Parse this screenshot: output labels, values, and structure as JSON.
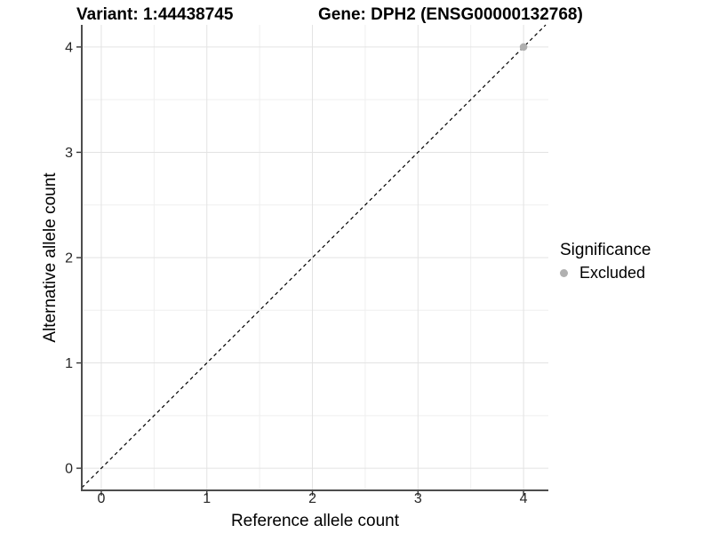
{
  "header": {
    "variant_title": "Variant: 1:44438745",
    "gene_title": "Gene: DPH2 (ENSG00000132768)"
  },
  "axes": {
    "x": {
      "label": "Reference allele count",
      "ticks": [
        "0",
        "1",
        "2",
        "3",
        "4"
      ]
    },
    "y": {
      "label": "Alternative allele count",
      "ticks": [
        "0",
        "1",
        "2",
        "3",
        "4"
      ]
    }
  },
  "legend": {
    "title": "Significance",
    "items": [
      {
        "label": "Excluded",
        "color": "#b0b0b0"
      }
    ]
  },
  "chart_data": {
    "type": "scatter",
    "title": "Variant: 1:44438745",
    "subtitle": "Gene: DPH2 (ENSG00000132768)",
    "xlabel": "Reference allele count",
    "ylabel": "Alternative allele count",
    "xlim": [
      -0.185,
      4.235
    ],
    "ylim": [
      -0.21,
      4.21
    ],
    "x_ticks": [
      0,
      1,
      2,
      3,
      4
    ],
    "y_ticks": [
      0,
      1,
      2,
      3,
      4
    ],
    "minor_ticks": [
      0.5,
      1.5,
      2.5,
      3.5
    ],
    "grid": true,
    "legend_position": "right",
    "series": [
      {
        "name": "Excluded",
        "color": "#b0b0b0",
        "points": [
          {
            "x": 4,
            "y": 4
          }
        ]
      }
    ],
    "reference_line": {
      "type": "identity y=x",
      "style": "dashed",
      "color": "#000000"
    },
    "colors": {
      "grid_major": "#e3e3e3",
      "grid_minor": "#efefef",
      "axis_line": "#4d4d4d",
      "tick_mark": "#333333",
      "tick_label": "#262626",
      "background": "#ffffff"
    }
  }
}
